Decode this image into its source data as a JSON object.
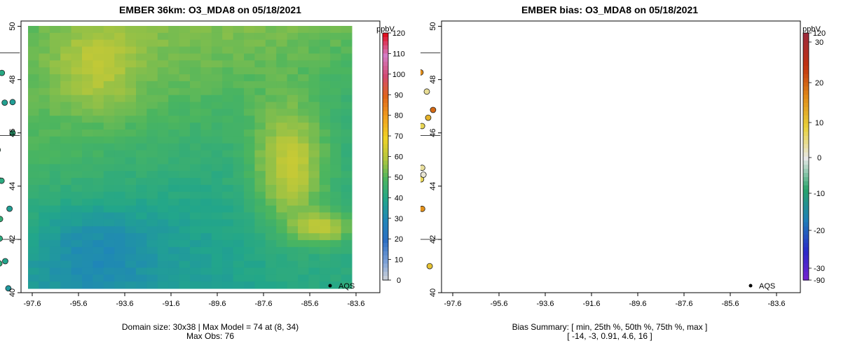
{
  "panels": [
    {
      "title": "EMBER 36km: O3_MDA8 on 05/18/2021",
      "unit": "ppbV",
      "colorbar_ticks": [
        "120",
        "110",
        "100",
        "90",
        "80",
        "70",
        "60",
        "50",
        "40",
        "30",
        "20",
        "10",
        "0"
      ],
      "footer_line1": "Domain size: 30x38 | Max Model = 74 at (8, 34)",
      "footer_line2": "Max Obs: 76",
      "marker_label": "AQS"
    },
    {
      "title": "EMBER bias: O3_MDA8 on 05/18/2021",
      "unit": "ppbV",
      "colorbar_ticks": [
        "120",
        "30",
        "20",
        "10",
        "0",
        "-10",
        "-20",
        "-30",
        "-90"
      ],
      "footer_line1": "Bias Summary: [ min, 25th %, 50th %, 75th %, max ]",
      "footer_line2": "[ -14,   -3,  0.91,   4.6,   16 ]",
      "marker_label": "AQS"
    }
  ],
  "axes": {
    "x_ticks": [
      "-97.6",
      "-95.6",
      "-93.6",
      "-91.6",
      "-89.6",
      "-87.6",
      "-85.6",
      "-83.6"
    ],
    "y_ticks": [
      "50",
      "48",
      "46",
      "44",
      "42",
      "40"
    ]
  },
  "colors": {
    "model_scale": [
      "#d9d9d9",
      "#7a9fd6",
      "#2c6fc4",
      "#1f86b8",
      "#22a68a",
      "#4bb55f",
      "#b4c63c",
      "#f0d226",
      "#f0a01e",
      "#e0651a",
      "#d24a72",
      "#d47cc4",
      "#e01020"
    ],
    "bias_scale": [
      "#7b1fd0",
      "#2a2ac8",
      "#1f7fb8",
      "#27a36a",
      "#e8e8e8",
      "#e8d23a",
      "#e08a18",
      "#c03010",
      "#9e2a3a"
    ]
  }
}
